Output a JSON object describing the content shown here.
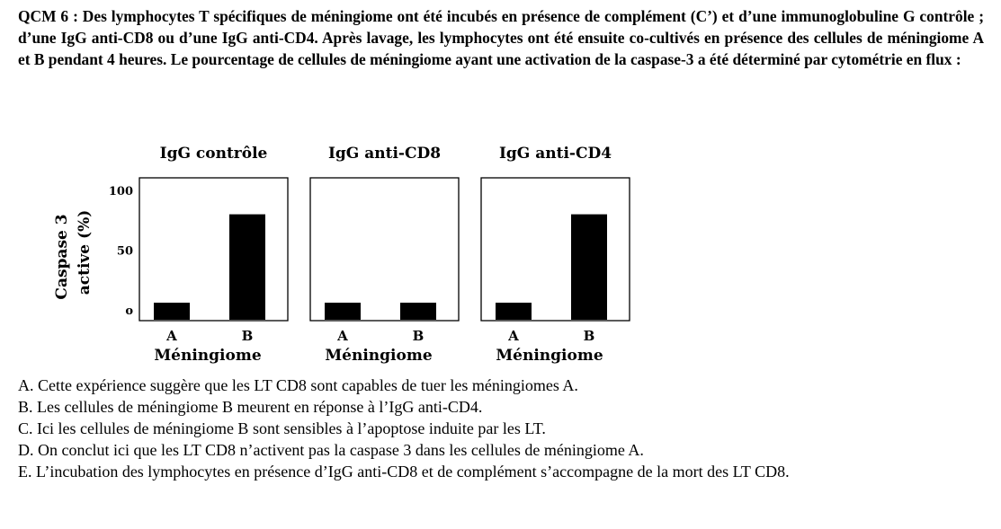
{
  "question": {
    "text": "QCM 6 : Des lymphocytes T spécifiques de méningiome ont été incubés en présence de complément (C’) et d’une immunoglobuline G contrôle ; d’une IgG anti-CD8 ou d’une IgG anti-CD4. Après lavage, les lymphocytes ont été ensuite co-cultivés en présence des cellules de méningiome A et B pendant 4 heures. Le pourcentage de cellules de méningiome ayant une activation de la caspase-3 a été déterminé par cytométrie en flux :"
  },
  "chart_data": {
    "type": "bar",
    "ylabel": [
      "Caspase 3",
      "active (%)"
    ],
    "ylim": [
      0,
      100
    ],
    "yticks": [
      0,
      50,
      100
    ],
    "ytick_labels": [
      "o",
      "50",
      "100"
    ],
    "xlabel": "Méningiome",
    "categories": [
      "A",
      "B"
    ],
    "panels": [
      {
        "title": "IgG contrôle",
        "values": [
          6,
          80
        ]
      },
      {
        "title": "IgG anti-CD8",
        "values": [
          6,
          6
        ]
      },
      {
        "title": "IgG anti-CD4",
        "values": [
          6,
          80
        ]
      }
    ],
    "bar_color": "#000000"
  },
  "options": [
    {
      "text": "A. Cette expérience suggère que les LT CD8 sont capables de tuer les méningiomes A."
    },
    {
      "text": "B. Les cellules de méningiome B meurent en réponse à l’IgG anti-CD4."
    },
    {
      "text": "C. Ici les cellules de méningiome B sont sensibles à l’apoptose induite par les LT."
    },
    {
      "text": "D. On conclut ici que les LT CD8 n’activent pas la caspase 3 dans les cellules de méningiome A."
    },
    {
      "text": "E. L’incubation des lymphocytes en présence d’IgG anti-CD8 et de complément s’accompagne de la mort des LT CD8."
    }
  ]
}
